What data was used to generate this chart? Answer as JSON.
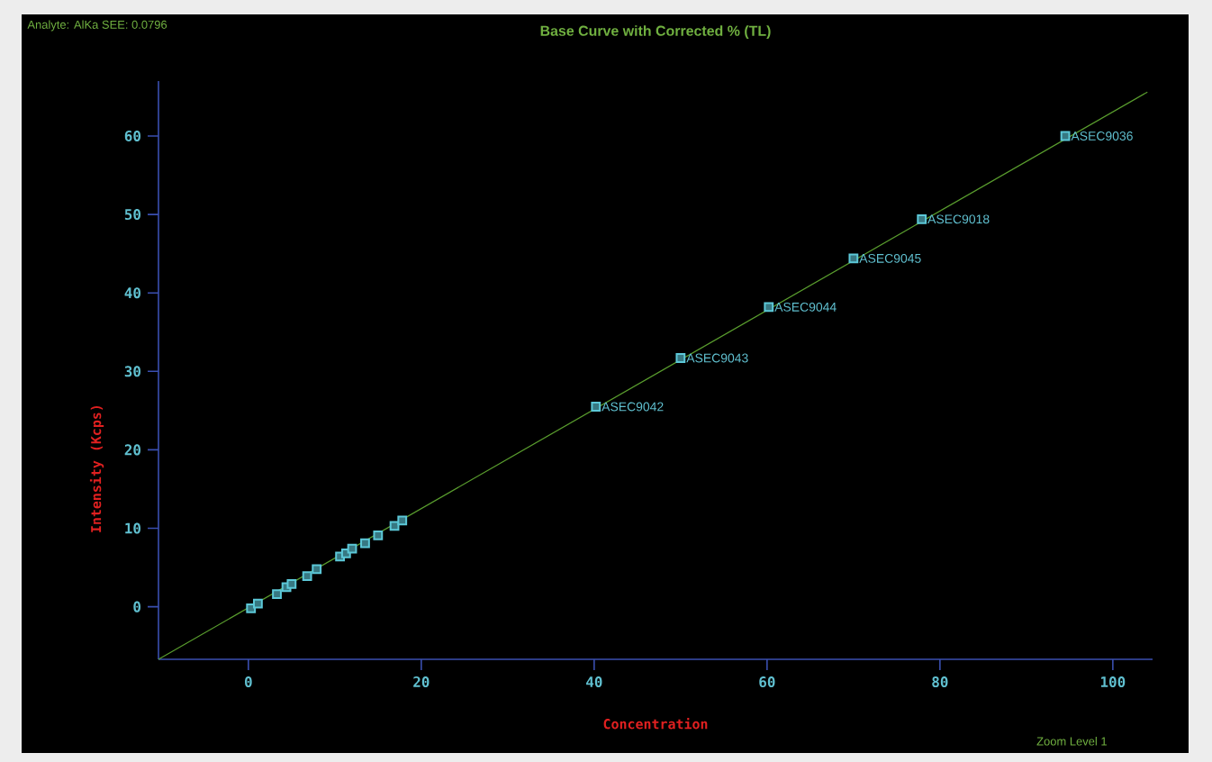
{
  "chart_data": {
    "type": "scatter",
    "title": "Base Curve with Corrected % (TL)",
    "xlabel": "Concentration",
    "ylabel": "Intensity   (Kcps)",
    "xlim": [
      -10.4,
      104.6
    ],
    "ylim": [
      -6.7,
      67
    ],
    "xticks": [
      0,
      20,
      40,
      60,
      80,
      100
    ],
    "yticks": [
      0,
      10,
      20,
      30,
      40,
      50,
      60
    ],
    "marker": "square",
    "series": [
      {
        "color": "#5cc8d8",
        "x": [
          0.3,
          1.1,
          3.3,
          4.4,
          5.0,
          6.8,
          7.9,
          10.6,
          11.3,
          12.0,
          13.5,
          15.0,
          16.9,
          17.8,
          40.2,
          50.0,
          60.2,
          70.0,
          77.9,
          94.5
        ],
        "values": [
          -0.2,
          0.4,
          1.6,
          2.5,
          2.9,
          3.9,
          4.8,
          6.4,
          6.8,
          7.4,
          8.1,
          9.1,
          10.3,
          11.0,
          25.5,
          31.7,
          38.2,
          44.4,
          49.4,
          60.0
        ]
      },
      {
        "type": "line",
        "color": "#5a9e2e",
        "marker": "none",
        "x": [
          -10.4,
          104
        ],
        "values": [
          -6.7,
          65.6
        ]
      }
    ],
    "annotations": [
      "Analyte: AlKa  SEE: 0.0796",
      "Zoom Level 1",
      {
        "text": "ASEC9042",
        "x": 40.2,
        "y": 25.5
      },
      {
        "text": "ASEC9043",
        "x": 50.0,
        "y": 31.7
      },
      {
        "text": "ASEC9044",
        "x": 60.2,
        "y": 38.2
      },
      {
        "text": "ASEC9045",
        "x": 70.0,
        "y": 44.4
      },
      {
        "text": "ASEC9018",
        "x": 77.9,
        "y": 49.4
      },
      {
        "text": "ASEC9036",
        "x": 94.5,
        "y": 60.0
      }
    ]
  }
}
